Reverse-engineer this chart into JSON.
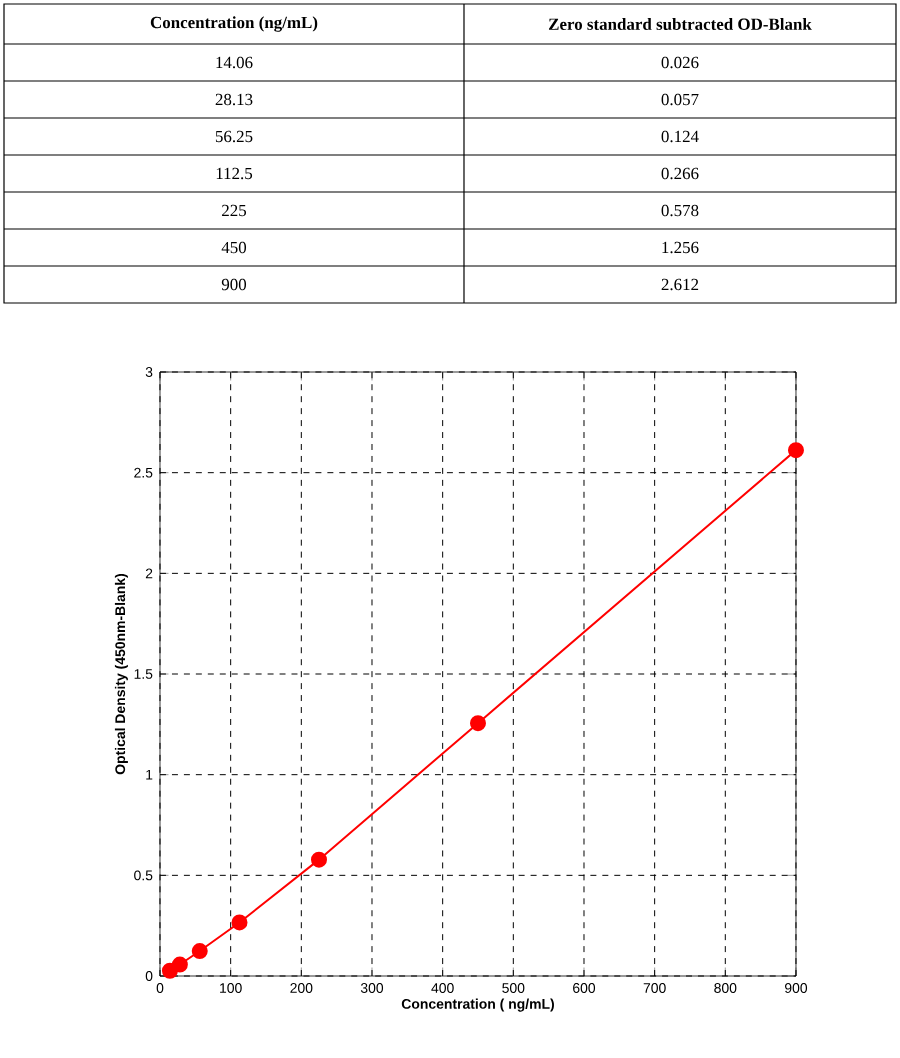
{
  "chart_data": [
    {
      "type": "other",
      "annotations": [
        "Concentration (ng/mL)",
        "Zero standard subtracted OD-Blank",
        "14.06",
        "0.026",
        "28.13",
        "0.057",
        "56.25",
        "0.124",
        "112.5",
        "0.266",
        "225",
        "0.578",
        "450",
        "1.256",
        "900",
        "2.612"
      ]
    },
    {
      "type": "line",
      "x": [
        14.06,
        28.13,
        56.25,
        112.5,
        225,
        450,
        900
      ],
      "values": [
        0.026,
        0.057,
        0.124,
        0.266,
        0.578,
        1.256,
        2.612
      ],
      "color": "#ff0000",
      "marker": "circle",
      "line_style": "solid",
      "xlabel": "Concentration  ( ng/mL)",
      "ylabel": "Optical Density (450nm-Blank)",
      "xlim": [
        0,
        900
      ],
      "ylim": [
        0,
        3
      ],
      "xticks": [
        0,
        100,
        200,
        300,
        400,
        500,
        600,
        700,
        800,
        900
      ],
      "yticks": [
        0,
        0.5,
        1,
        1.5,
        2,
        2.5,
        3
      ],
      "grid": true
    }
  ]
}
